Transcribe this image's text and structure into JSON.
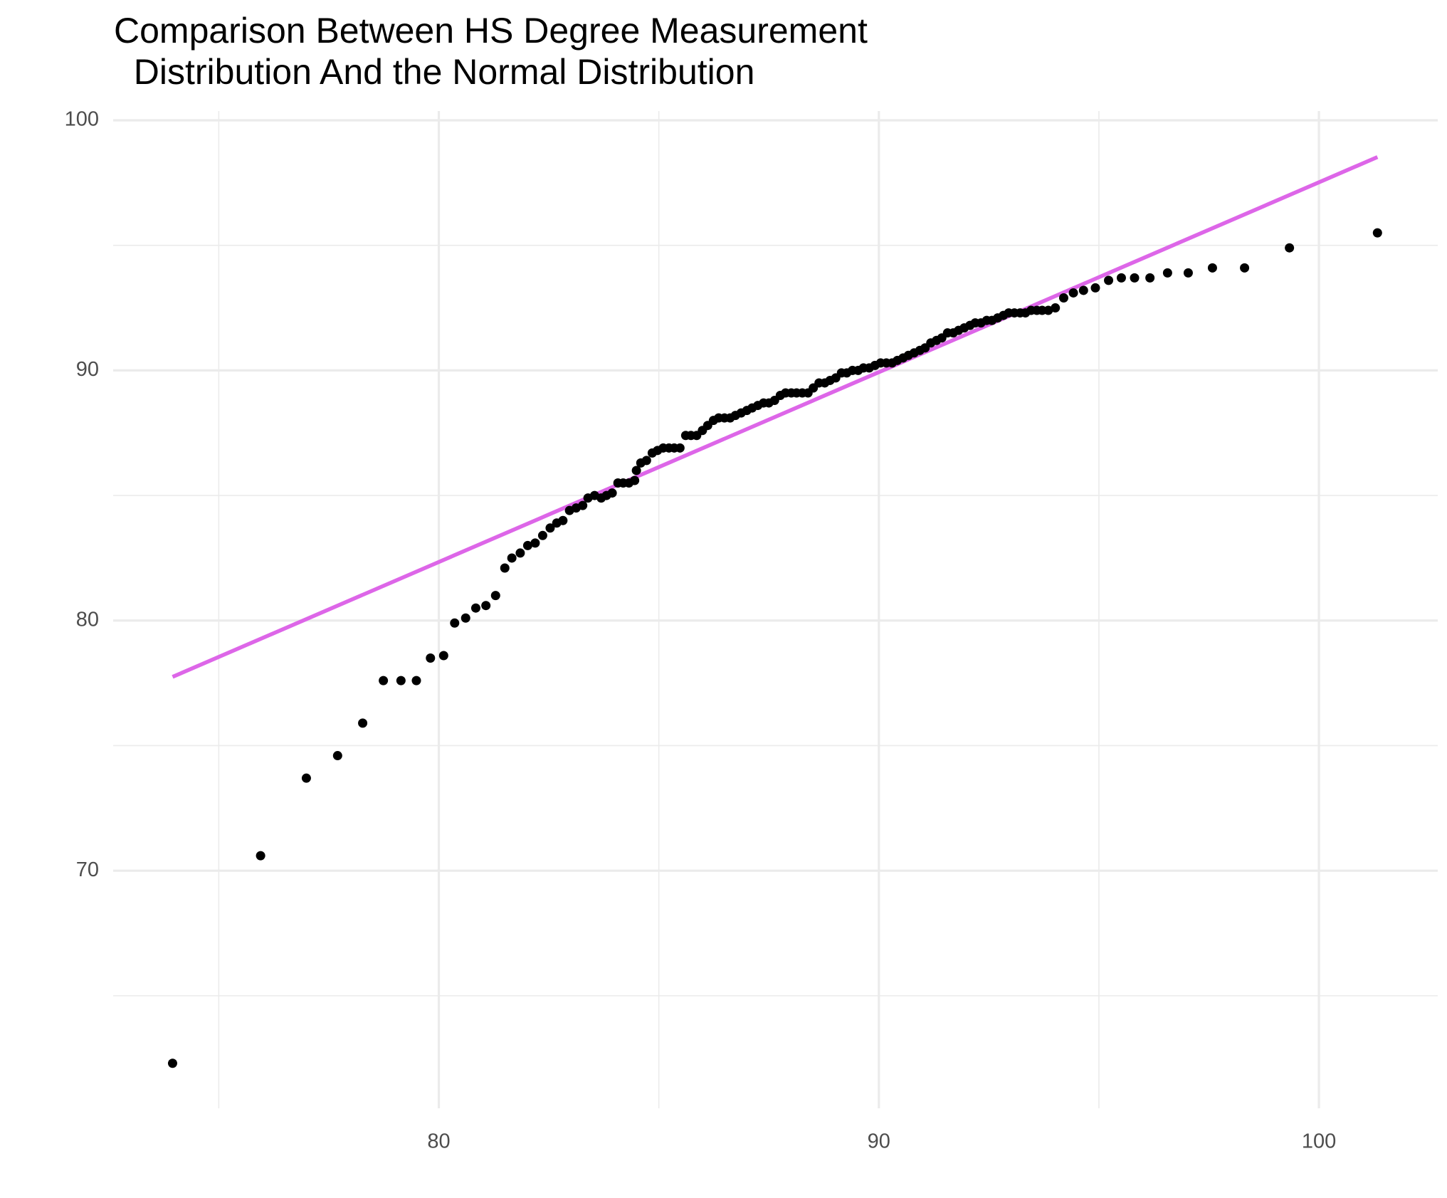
{
  "chart_data": {
    "type": "scatter",
    "title": "Comparison Between HS Degree Measurement\n  Distribution And the Normal Distribution",
    "xlim": [
      72.6,
      102.7
    ],
    "ylim": [
      60.5,
      100.37
    ],
    "xticks": [
      80,
      90,
      100
    ],
    "yticks": [
      70,
      80,
      90,
      100
    ],
    "minor_xticks": [
      75,
      85,
      95
    ],
    "minor_yticks": [
      65,
      75,
      85,
      95
    ],
    "grid": true,
    "points": {
      "color": "#000000",
      "x": [
        73.95,
        75.95,
        76.99,
        77.7,
        78.27,
        78.74,
        79.14,
        79.49,
        79.81,
        80.11,
        80.36,
        80.61,
        80.84,
        81.07,
        81.29,
        81.5,
        81.66,
        81.85,
        82.02,
        82.19,
        82.36,
        82.53,
        82.68,
        82.82,
        82.97,
        83.12,
        83.27,
        83.39,
        83.54,
        83.69,
        83.81,
        83.94,
        84.07,
        84.19,
        84.32,
        84.45,
        84.49,
        84.59,
        84.72,
        84.85,
        84.97,
        85.1,
        85.23,
        85.35,
        85.48,
        85.61,
        85.73,
        85.86,
        85.99,
        86.11,
        86.24,
        86.36,
        86.49,
        86.62,
        86.74,
        86.87,
        87.0,
        87.12,
        87.25,
        87.38,
        87.5,
        87.63,
        87.76,
        87.88,
        88.01,
        88.13,
        88.26,
        88.39,
        88.51,
        88.64,
        88.77,
        88.89,
        89.02,
        89.15,
        89.27,
        89.4,
        89.53,
        89.65,
        89.78,
        89.91,
        90.04,
        90.17,
        90.3,
        90.42,
        90.55,
        90.67,
        90.8,
        90.93,
        91.05,
        91.18,
        91.31,
        91.43,
        91.56,
        91.69,
        91.81,
        91.94,
        92.07,
        92.19,
        92.32,
        92.45,
        92.57,
        92.7,
        92.83,
        92.95,
        93.08,
        93.21,
        93.33,
        93.46,
        93.59,
        93.71,
        93.85,
        94.01,
        94.2,
        94.42,
        94.65,
        94.92,
        95.22,
        95.51,
        95.81,
        96.16,
        96.56,
        97.03,
        97.58,
        98.31,
        99.33,
        101.33
      ],
      "y": [
        62.3,
        70.6,
        73.7,
        74.6,
        75.9,
        77.6,
        77.6,
        77.6,
        78.5,
        78.6,
        79.9,
        80.1,
        80.5,
        80.6,
        81.0,
        82.1,
        82.5,
        82.7,
        83.0,
        83.1,
        83.4,
        83.7,
        83.9,
        84.0,
        84.4,
        84.5,
        84.6,
        84.9,
        85.0,
        84.9,
        85.0,
        85.1,
        85.5,
        85.5,
        85.5,
        85.6,
        86.0,
        86.3,
        86.4,
        86.7,
        86.8,
        86.9,
        86.9,
        86.9,
        86.9,
        87.4,
        87.4,
        87.4,
        87.6,
        87.8,
        88.0,
        88.1,
        88.1,
        88.1,
        88.2,
        88.3,
        88.4,
        88.5,
        88.6,
        88.7,
        88.7,
        88.8,
        89.0,
        89.1,
        89.1,
        89.1,
        89.1,
        89.1,
        89.3,
        89.5,
        89.5,
        89.6,
        89.7,
        89.9,
        89.9,
        90.0,
        90.0,
        90.1,
        90.1,
        90.2,
        90.3,
        90.3,
        90.3,
        90.4,
        90.5,
        90.6,
        90.7,
        90.8,
        90.9,
        91.1,
        91.2,
        91.3,
        91.5,
        91.5,
        91.6,
        91.7,
        91.8,
        91.9,
        91.9,
        92.0,
        92.0,
        92.1,
        92.2,
        92.3,
        92.3,
        92.3,
        92.3,
        92.4,
        92.4,
        92.4,
        92.4,
        92.5,
        92.9,
        93.1,
        93.2,
        93.3,
        93.6,
        93.7,
        93.7,
        93.7,
        93.9,
        93.9,
        94.1,
        94.1,
        94.9,
        95.5
      ]
    },
    "reference_line": {
      "color": "#dd66e8",
      "x": [
        73.95,
        101.33
      ],
      "y": [
        77.75,
        98.53
      ]
    }
  }
}
